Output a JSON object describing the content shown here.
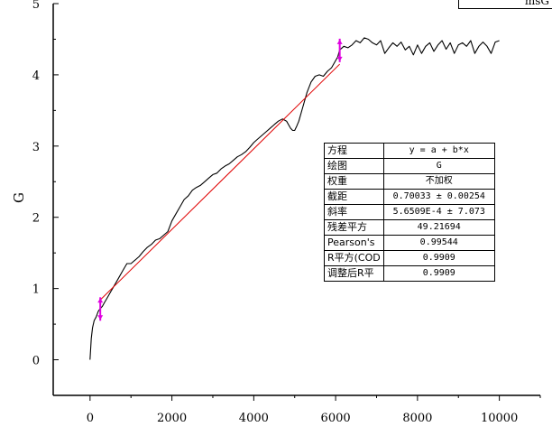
{
  "chart_data": {
    "type": "line",
    "ylabel": "G",
    "xlim": [
      -900,
      11000
    ],
    "ylim": [
      -0.5,
      5
    ],
    "x_ticks": [
      0,
      2000,
      4000,
      6000,
      8000,
      10000
    ],
    "y_ticks": [
      0,
      1,
      2,
      3,
      4,
      5
    ],
    "series": [
      {
        "x": [
          0,
          30,
          60,
          100,
          150,
          200,
          250,
          300,
          350,
          400,
          450,
          500,
          600,
          700,
          800,
          900,
          1000,
          1100,
          1200,
          1300,
          1400,
          1500,
          1600,
          1700,
          1800,
          1900,
          2000,
          2100,
          2200,
          2300,
          2400,
          2500,
          2600,
          2700,
          2800,
          2900,
          3000,
          3100,
          3200,
          3300,
          3400,
          3500,
          3600,
          3700,
          3800,
          3900,
          4000,
          4100,
          4200,
          4300,
          4400,
          4500,
          4600,
          4700,
          4800,
          4850,
          4900,
          4950,
          5000,
          5050,
          5100,
          5200,
          5300,
          5400,
          5500,
          5600,
          5700,
          5800,
          5900,
          6000,
          6050,
          6100,
          6200,
          6300,
          6400,
          6500,
          6600,
          6700,
          6800,
          6900,
          7000,
          7100,
          7200,
          7300,
          7400,
          7500,
          7600,
          7700,
          7800,
          7900,
          8000,
          8100,
          8200,
          8300,
          8400,
          8500,
          8600,
          8700,
          8800,
          8900,
          9000,
          9100,
          9200,
          9300,
          9400,
          9500,
          9600,
          9700,
          9800,
          9900,
          10000
        ],
        "y": [
          0.0,
          0.3,
          0.45,
          0.55,
          0.6,
          0.68,
          0.72,
          0.75,
          0.8,
          0.85,
          0.9,
          0.95,
          1.05,
          1.15,
          1.25,
          1.35,
          1.35,
          1.4,
          1.45,
          1.52,
          1.58,
          1.62,
          1.68,
          1.7,
          1.75,
          1.8,
          1.95,
          2.05,
          2.15,
          2.25,
          2.3,
          2.38,
          2.42,
          2.45,
          2.5,
          2.55,
          2.6,
          2.62,
          2.68,
          2.72,
          2.75,
          2.8,
          2.85,
          2.88,
          2.92,
          2.98,
          3.05,
          3.1,
          3.15,
          3.2,
          3.25,
          3.3,
          3.35,
          3.38,
          3.35,
          3.3,
          3.25,
          3.22,
          3.22,
          3.28,
          3.35,
          3.55,
          3.75,
          3.9,
          3.98,
          4.0,
          3.98,
          4.05,
          4.1,
          4.2,
          4.25,
          4.35,
          4.4,
          4.38,
          4.42,
          4.48,
          4.45,
          4.52,
          4.5,
          4.45,
          4.42,
          4.48,
          4.3,
          4.38,
          4.45,
          4.4,
          4.46,
          4.35,
          4.4,
          4.28,
          4.42,
          4.3,
          4.4,
          4.45,
          4.33,
          4.42,
          4.48,
          4.36,
          4.45,
          4.3,
          4.42,
          4.45,
          4.4,
          4.48,
          4.3,
          4.4,
          4.46,
          4.4,
          4.3,
          4.46,
          4.48
        ]
      },
      {
        "x": [
          250,
          6100
        ],
        "y": [
          0.84,
          4.15
        ]
      }
    ],
    "markers": [
      {
        "x": 250,
        "y": 0.7
      },
      {
        "x": 6100,
        "y": 4.33
      }
    ]
  },
  "legend": {
    "text": "msG"
  },
  "fit_table": [
    {
      "key": "方程",
      "value": "y = a + b*x"
    },
    {
      "key": "绘图",
      "value": "G"
    },
    {
      "key": "权重",
      "value": "不加权"
    },
    {
      "key": "截距",
      "value": "0.70033 ± 0.00254"
    },
    {
      "key": "斜率",
      "value": "5.6509E-4 ± 7.073"
    },
    {
      "key": "残差平方",
      "value": "49.21694"
    },
    {
      "key": "Pearson's",
      "value": "0.99544"
    },
    {
      "key": "R平方(COD",
      "value": "0.9909"
    },
    {
      "key": "调整后R平",
      "value": "0.9909"
    }
  ],
  "colors": {
    "data_line": "#000000",
    "fit_line": "#e00000",
    "marker": "#e000e0"
  }
}
